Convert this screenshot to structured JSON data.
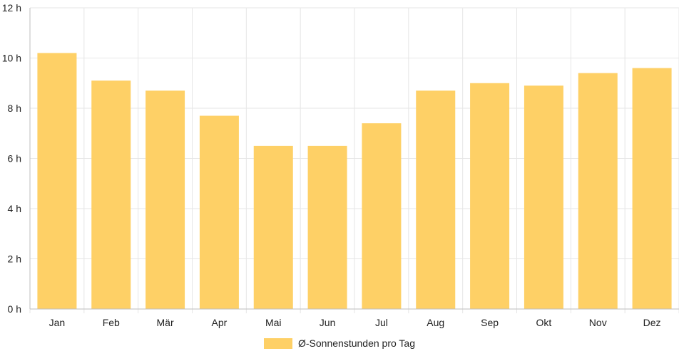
{
  "chart_data": {
    "type": "bar",
    "categories": [
      "Jan",
      "Feb",
      "Mär",
      "Apr",
      "Mai",
      "Jun",
      "Jul",
      "Aug",
      "Sep",
      "Okt",
      "Nov",
      "Dez"
    ],
    "series": [
      {
        "name": "Ø-Sonnenstunden pro Tag",
        "values": [
          10.2,
          9.1,
          8.7,
          7.7,
          6.5,
          6.5,
          7.4,
          8.7,
          9.0,
          8.9,
          9.4,
          9.6
        ],
        "color": "#fed066"
      }
    ],
    "y_tick_labels": [
      "0 h",
      "2 h",
      "4 h",
      "6 h",
      "8 h",
      "10 h",
      "12 h"
    ],
    "ylim": [
      0,
      12
    ],
    "grid": true,
    "legend_position": "bottom"
  }
}
